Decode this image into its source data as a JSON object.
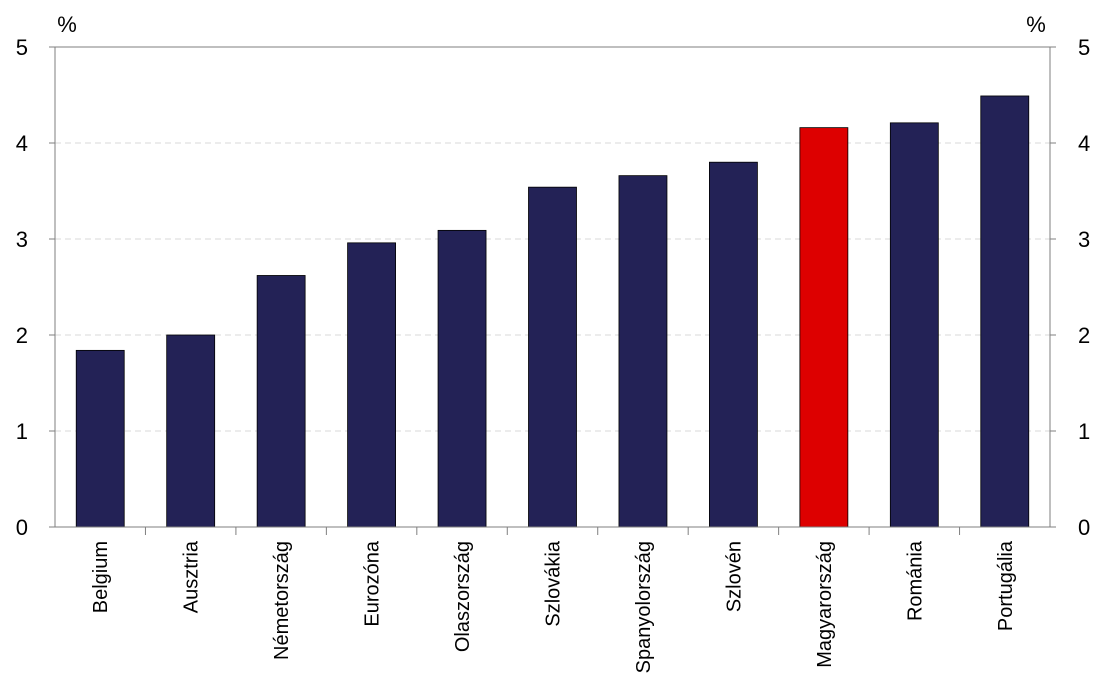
{
  "chart_data": {
    "type": "bar",
    "categories": [
      "Belgium",
      "Ausztria",
      "Németország",
      "Eurozóna",
      "Olaszország",
      "Szlovákia",
      "Spanyolország",
      "Szlovén",
      "Magyarország",
      "Románia",
      "Portugália"
    ],
    "values": [
      1.84,
      2.0,
      2.62,
      2.96,
      3.09,
      3.54,
      3.66,
      3.8,
      4.16,
      4.21,
      4.49
    ],
    "highlight_index": 8,
    "colors": {
      "bar": "#232256",
      "highlight": "#dd0000",
      "grid": "#d9d9d9",
      "axis": "#7f7f7f"
    },
    "ylim": [
      0,
      5
    ],
    "yticks": [
      "0",
      "1",
      "2",
      "3",
      "4",
      "5"
    ],
    "left_unit": "%",
    "right_unit": "%",
    "grid": true,
    "legend": "none"
  }
}
